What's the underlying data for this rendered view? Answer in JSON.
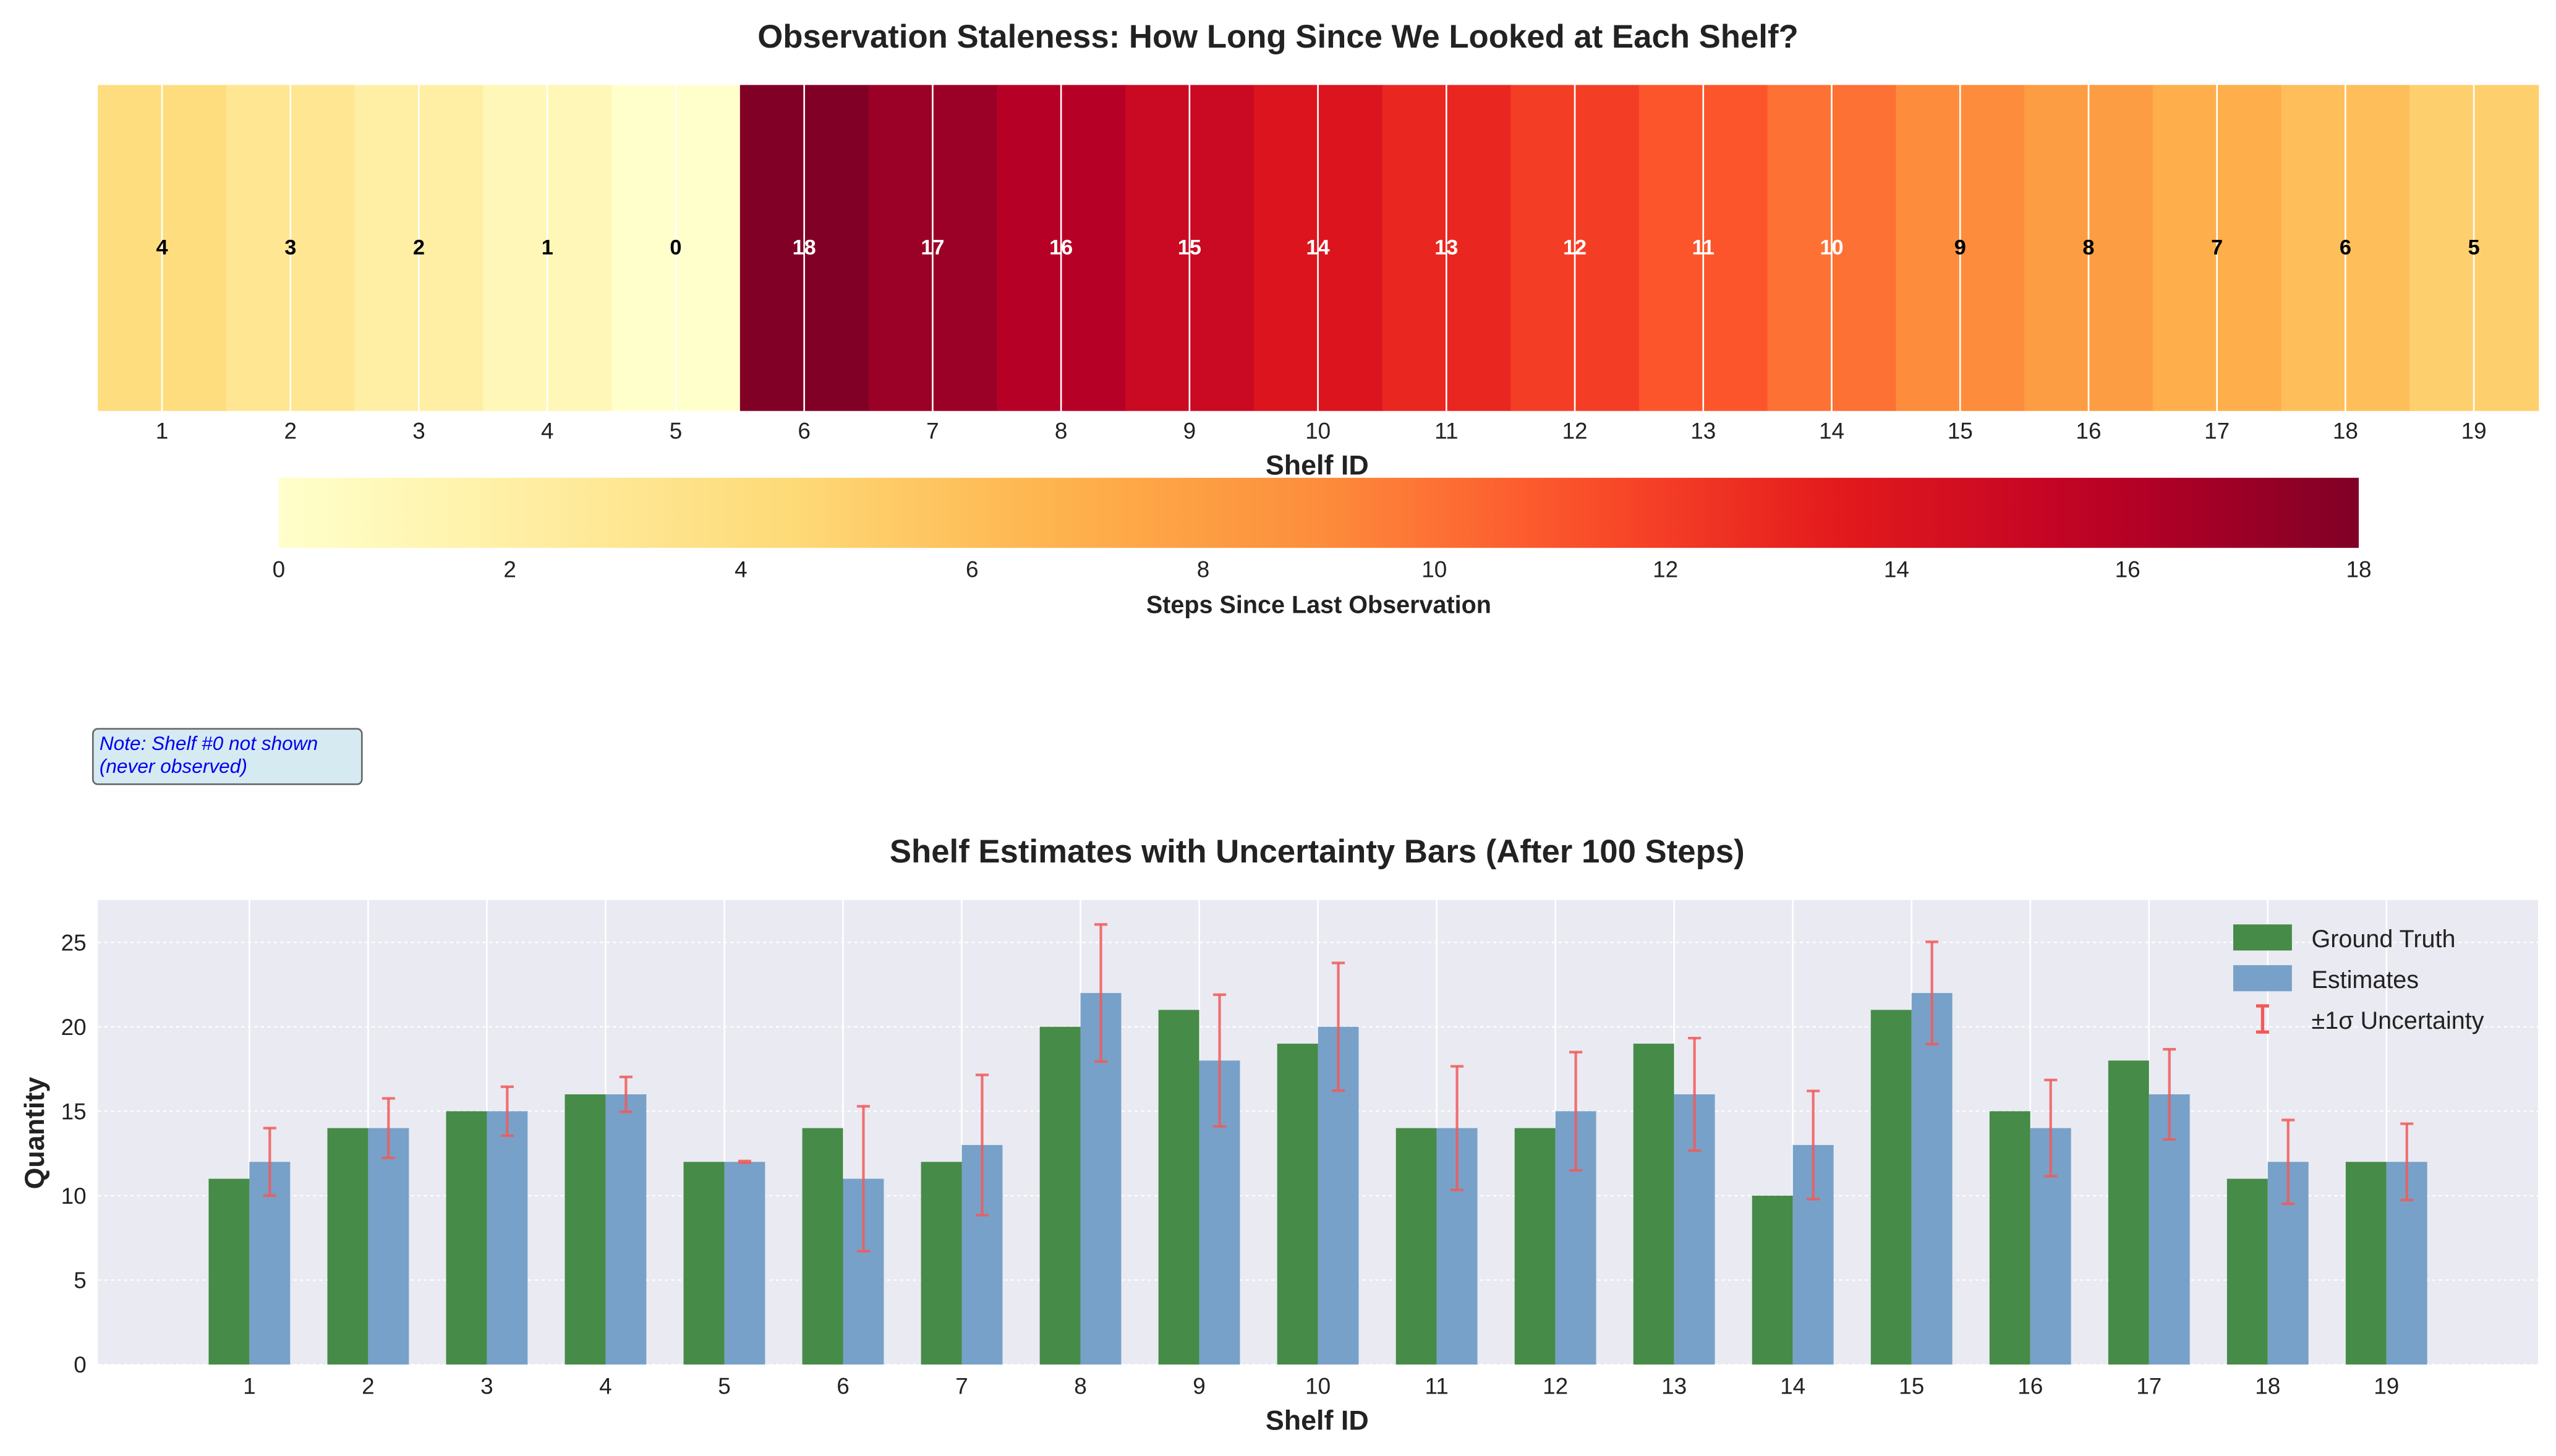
{
  "colormap": [
    "#ffffcc",
    "#ffeda0",
    "#fed976",
    "#feb24c",
    "#fd8d3c",
    "#fc4e2a",
    "#e31a1c",
    "#bd0026",
    "#800026"
  ],
  "colors": {
    "ground_truth": "#2e7d32",
    "estimates": "#6a98c4",
    "uncertainty": "#f05a5a",
    "plot_bg": "#eaeaf2"
  },
  "note": {
    "line1": "Note: Shelf #0 not shown",
    "line2": "(never observed)"
  },
  "chart_data": [
    {
      "type": "heatmap",
      "title": "Observation Staleness: How Long Since We Looked at Each Shelf?",
      "xlabel": "Shelf ID",
      "categories": [
        "1",
        "2",
        "3",
        "4",
        "5",
        "6",
        "7",
        "8",
        "9",
        "10",
        "11",
        "12",
        "13",
        "14",
        "15",
        "16",
        "17",
        "18",
        "19"
      ],
      "values": [
        4,
        3,
        2,
        1,
        0,
        18,
        17,
        16,
        15,
        14,
        13,
        12,
        11,
        10,
        9,
        8,
        7,
        6,
        5
      ],
      "colorbar": {
        "label": "Steps Since Last Observation",
        "range": [
          0,
          18
        ],
        "ticks": [
          "0",
          "2",
          "4",
          "6",
          "8",
          "10",
          "12",
          "14",
          "16",
          "18"
        ],
        "colormap": "YlOrRd"
      }
    },
    {
      "type": "bar",
      "title": "Shelf Estimates with Uncertainty Bars (After 100 Steps)",
      "xlabel": "Shelf ID",
      "ylabel": "Quantity",
      "ylim": [
        0,
        27.3
      ],
      "yticks": [
        "0",
        "5",
        "10",
        "15",
        "20",
        "25"
      ],
      "categories": [
        "1",
        "2",
        "3",
        "4",
        "5",
        "6",
        "7",
        "8",
        "9",
        "10",
        "11",
        "12",
        "13",
        "14",
        "15",
        "16",
        "17",
        "18",
        "19"
      ],
      "series": [
        {
          "name": "Ground Truth",
          "values": [
            11,
            14,
            15,
            16,
            12,
            14,
            12,
            20,
            21,
            19,
            14,
            14,
            19,
            10,
            21,
            15,
            18,
            11,
            12
          ]
        },
        {
          "name": "Estimates",
          "values": [
            12,
            14,
            15,
            16,
            12,
            11,
            13,
            22,
            18,
            20,
            14,
            15,
            16,
            13,
            22,
            14,
            16,
            12,
            12
          ],
          "error": [
            2.0,
            1.76,
            1.45,
            1.03,
            0.05,
            4.29,
            4.15,
            4.06,
            3.9,
            3.78,
            3.66,
            3.5,
            3.33,
            3.2,
            3.03,
            2.85,
            2.67,
            2.48,
            2.26
          ]
        }
      ],
      "error_label": "±1σ Uncertainty",
      "legend": "top-right",
      "grid": true
    }
  ]
}
